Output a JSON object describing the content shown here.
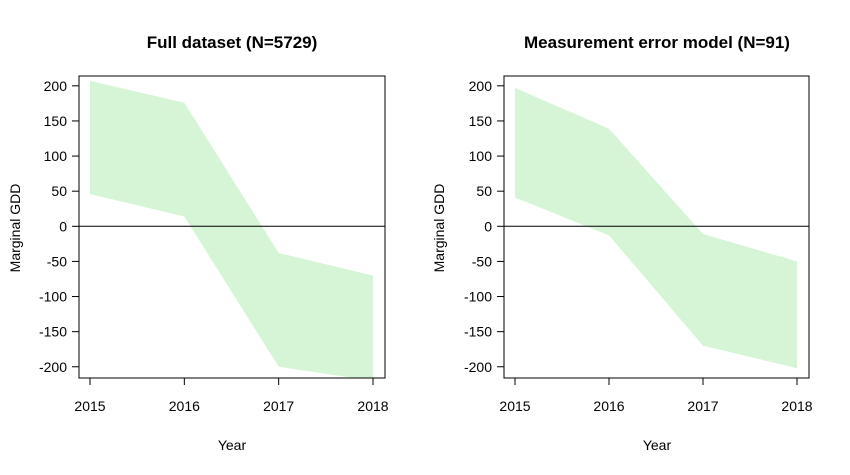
{
  "figure": {
    "colors": {
      "band_fill": "#d6f5d6",
      "line": "#000000",
      "background": "#ffffff"
    }
  },
  "chart_data": [
    {
      "type": "area",
      "title": "Full dataset (N=5729)",
      "xlabel": "Year",
      "ylabel": "Marginal GDD",
      "x": [
        2015,
        2016,
        2017,
        2018
      ],
      "x_ticks": [
        "2015",
        "2016",
        "2017",
        "2018"
      ],
      "y_ticks": [
        "200",
        "150",
        "100",
        "50",
        "0",
        "-50",
        "-100",
        "-150",
        "-200"
      ],
      "y_tick_values": [
        200,
        150,
        100,
        50,
        0,
        -50,
        -100,
        -150,
        -200
      ],
      "ylim": [
        -216,
        214
      ],
      "reference_line_y": 0,
      "series": [
        {
          "upper": [
            207,
            176,
            -38,
            -70
          ],
          "lower": [
            46,
            14,
            -200,
            -220
          ]
        }
      ]
    },
    {
      "type": "area",
      "title": "Measurement error model (N=91)",
      "xlabel": "Year",
      "ylabel": "Marginal GDD",
      "x": [
        2015,
        2016,
        2017,
        2018
      ],
      "x_ticks": [
        "2015",
        "2016",
        "2017",
        "2018"
      ],
      "y_ticks": [
        "200",
        "150",
        "100",
        "50",
        "0",
        "-50",
        "-100",
        "-150",
        "-200"
      ],
      "y_tick_values": [
        200,
        150,
        100,
        50,
        0,
        -50,
        -100,
        -150,
        -200
      ],
      "ylim": [
        -216,
        214
      ],
      "reference_line_y": 0,
      "series": [
        {
          "upper": [
            197,
            139,
            -11,
            -50
          ],
          "lower": [
            41,
            -13,
            -170,
            -202
          ]
        }
      ]
    }
  ]
}
